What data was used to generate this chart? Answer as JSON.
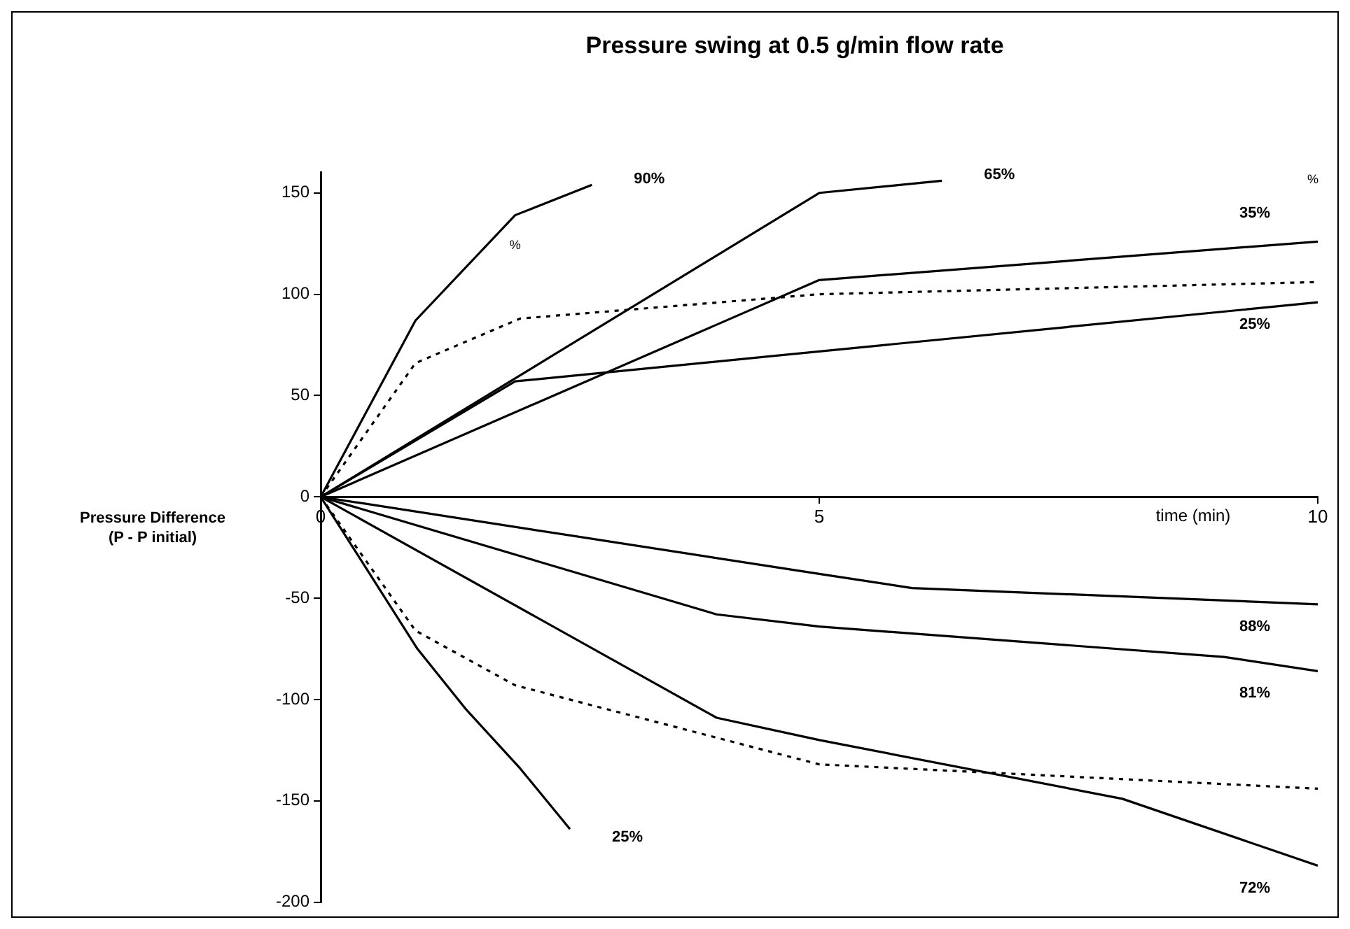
{
  "chart_data": {
    "type": "line",
    "title": "Pressure swing at 0.5 g/min flow rate",
    "xlabel": "time (min)",
    "ylabel": "Pressure Difference\n(P - P initial)",
    "xlim": [
      0,
      10
    ],
    "xticks": [
      0,
      5,
      10
    ],
    "ylim": [
      -200,
      160
    ],
    "yticks": [
      -200,
      -150,
      -100,
      -50,
      0,
      50,
      100,
      150
    ],
    "grid": false,
    "legend": false,
    "marker": "none",
    "series": [
      {
        "name": "90%",
        "color": "#000000",
        "x": [
          0,
          0.95,
          1.95,
          2.72
        ],
        "values": [
          0,
          87,
          139,
          154
        ]
      },
      {
        "name": "65%",
        "color": "#000000",
        "x": [
          0,
          5,
          6.23
        ],
        "values": [
          0,
          150,
          156
        ]
      },
      {
        "name": "35%",
        "color": "#000000",
        "x": [
          0,
          5,
          10
        ],
        "values": [
          0,
          107,
          126
        ]
      },
      {
        "color": "#000000",
        "line_style": "dotted",
        "x": [
          0,
          0.95,
          2,
          5,
          10
        ],
        "values": [
          0,
          66,
          88,
          100,
          106
        ]
      },
      {
        "name": "25%",
        "color": "#000000",
        "x": [
          0,
          1.95,
          10
        ],
        "values": [
          0,
          57,
          96
        ]
      },
      {
        "name": "88%",
        "color": "#000000",
        "x": [
          0,
          5,
          5.93,
          10
        ],
        "values": [
          0,
          -38,
          -45,
          -53
        ]
      },
      {
        "name": "81%",
        "color": "#000000",
        "x": [
          0,
          3.97,
          5,
          9.06,
          10
        ],
        "values": [
          0,
          -58,
          -64,
          -79,
          -86
        ]
      },
      {
        "name": "72%",
        "color": "#000000",
        "x": [
          0,
          3.97,
          5,
          8.04,
          10
        ],
        "values": [
          0,
          -109,
          -120,
          -149,
          -182
        ]
      },
      {
        "color": "#000000",
        "line_style": "dotted",
        "x": [
          0,
          0.95,
          1.95,
          5,
          10
        ],
        "values": [
          0,
          -66,
          -93,
          -132,
          -144
        ]
      },
      {
        "name": "25%",
        "color": "#000000",
        "x": [
          0,
          0.97,
          1.46,
          2,
          2.5
        ],
        "values": [
          0,
          -75,
          -105,
          -134,
          -164
        ]
      }
    ],
    "annotations": [
      "%",
      "%"
    ]
  }
}
